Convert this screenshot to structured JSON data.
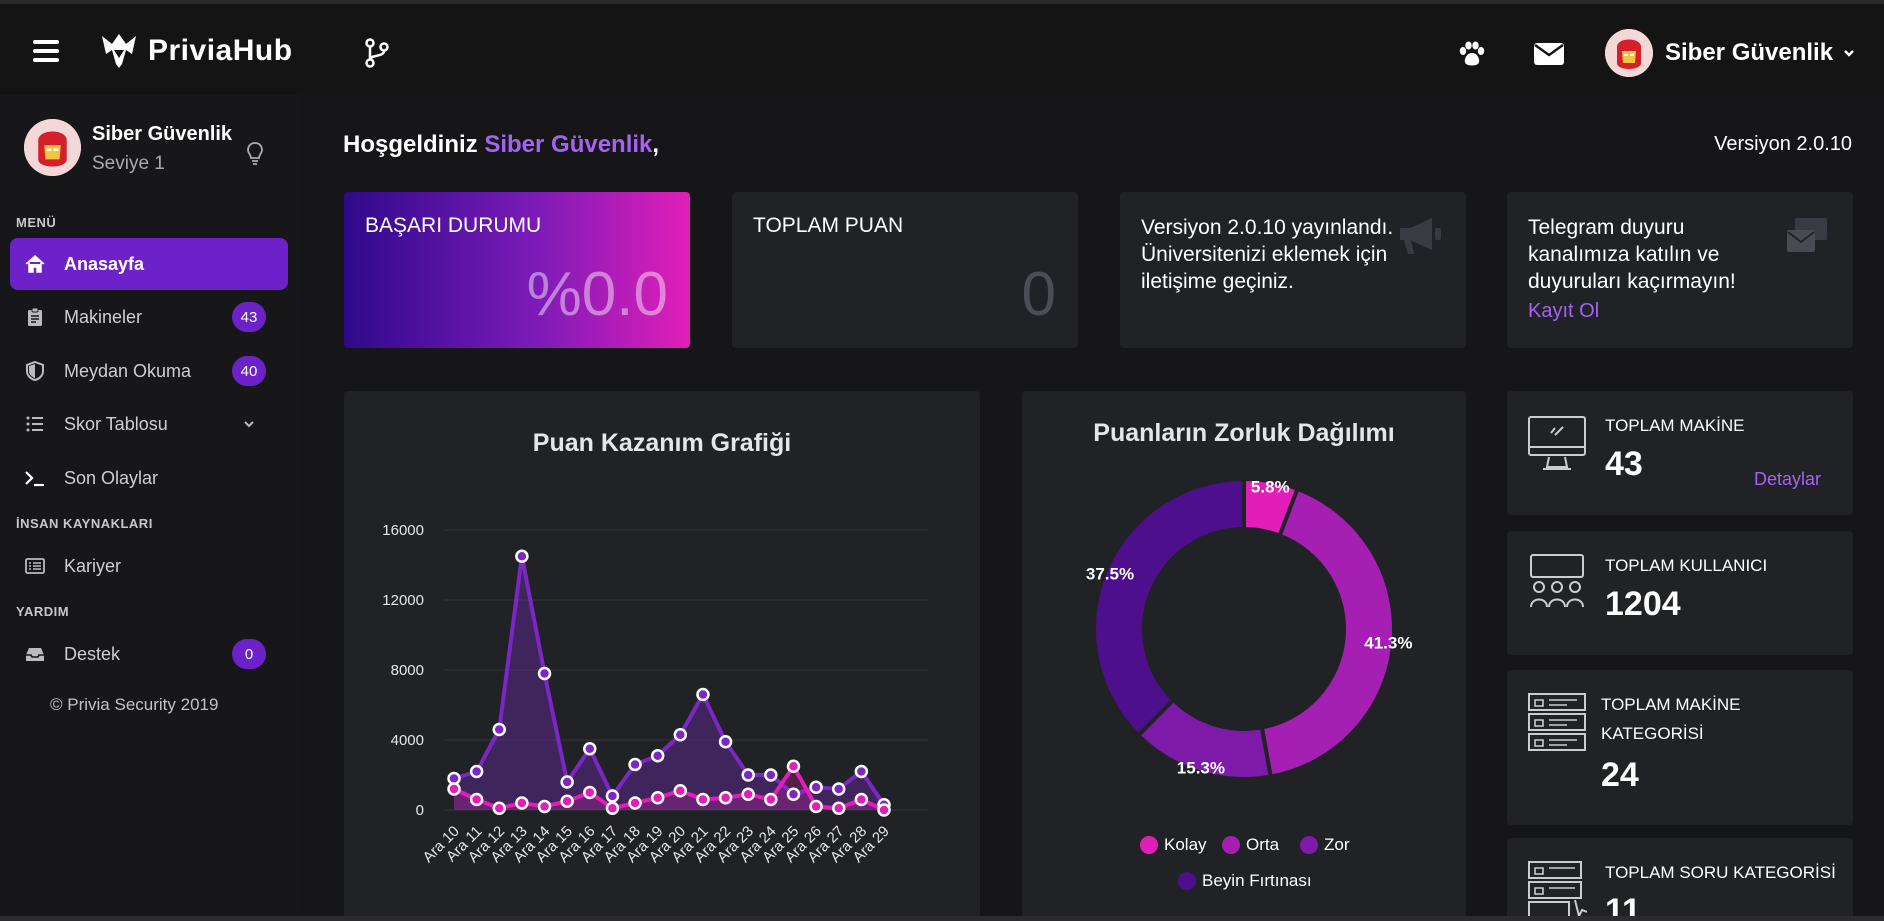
{
  "topbar": {
    "brand": "PriviaHub",
    "user_name": "Siber Güvenlik"
  },
  "sidebar": {
    "profile_name": "Siber Güvenlik",
    "profile_level": "Seviye 1",
    "sections": {
      "menu": "MENÜ",
      "hr": "İNSAN KAYNAKLARI",
      "help": "YARDIM"
    },
    "items": [
      {
        "label": "Anasayfa",
        "icon": "home-icon"
      },
      {
        "label": "Makineler",
        "icon": "clipboard-icon",
        "badge": "43"
      },
      {
        "label": "Meydan Okuma",
        "icon": "shield-icon",
        "badge": "40"
      },
      {
        "label": "Skor Tablosu",
        "icon": "list-icon"
      },
      {
        "label": "Son Olaylar",
        "icon": "terminal-icon"
      },
      {
        "label": "Kariyer",
        "icon": "document-list-icon"
      },
      {
        "label": "Destek",
        "icon": "inbox-icon",
        "badge": "0"
      }
    ],
    "copyright": "© Privia Security 2019"
  },
  "main": {
    "welcome_prefix": "Hoşgeldiniz ",
    "welcome_name": "Siber Güvenlik",
    "welcome_suffix": ",",
    "version": "Versiyon 2.0.10",
    "cards": {
      "success_title": "BAŞARI DURUMU",
      "success_value": "%0.0",
      "points_title": "TOPLAM PUAN",
      "points_value": "0",
      "announcement": "Versiyon 2.0.10 yayınlandı. Üniversitenizi eklemek için iletişime geçiniz.",
      "telegram_text": "Telegram duyuru kanalımıza katılın ve duyuruları kaçırmayın!",
      "telegram_link": "Kayıt Ol"
    },
    "stats": {
      "machines_label": "TOPLAM MAKİNE",
      "machines_value": "43",
      "machines_link": "Detaylar",
      "users_label": "TOPLAM KULLANICI",
      "users_value": "1204",
      "machine_cat_label_1": "TOPLAM MAKİNE",
      "machine_cat_label_2": "KATEGORİSİ",
      "machine_cat_value": "24",
      "question_cat_label": "TOPLAM SORU KATEGORİSİ",
      "question_cat_value": "11"
    }
  },
  "chart_data": [
    {
      "type": "area",
      "title": "Puan Kazanım Grafiği",
      "categories": [
        "Ara 10",
        "Ara 11",
        "Ara 12",
        "Ara 13",
        "Ara 14",
        "Ara 15",
        "Ara 16",
        "Ara 17",
        "Ara 18",
        "Ara 19",
        "Ara 20",
        "Ara 21",
        "Ara 22",
        "Ara 23",
        "Ara 24",
        "Ara 25",
        "Ara 26",
        "Ara 27",
        "Ara 28",
        "Ara 29"
      ],
      "series": [
        {
          "color": "#7a27c4",
          "values": [
            1800,
            2200,
            4600,
            14500,
            7800,
            1600,
            3500,
            800,
            2600,
            3100,
            4300,
            6600,
            3900,
            2000,
            2000,
            900,
            1300,
            1200,
            2200,
            300
          ]
        },
        {
          "color": "#e21eb8",
          "values": [
            1200,
            600,
            100,
            400,
            200,
            500,
            1000,
            100,
            400,
            700,
            1100,
            600,
            700,
            900,
            600,
            2500,
            200,
            100,
            600,
            0
          ]
        }
      ],
      "yticks": [
        0,
        4000,
        8000,
        12000,
        16000
      ],
      "ylim": [
        0,
        16000
      ]
    },
    {
      "type": "pie",
      "title": "Puanların Zorluk Dağılımı",
      "labels": [
        "Kolay",
        "Orta",
        "Zor",
        "Beyin Fırtınası"
      ],
      "values": [
        5.8,
        41.3,
        15.3,
        37.5
      ],
      "value_labels": [
        "5.8%",
        "41.3%",
        "15.3%",
        "37.5%"
      ],
      "colors": [
        "#e21eb8",
        "#a41fb2",
        "#7d1aa8",
        "#4e0f8c"
      ]
    }
  ]
}
